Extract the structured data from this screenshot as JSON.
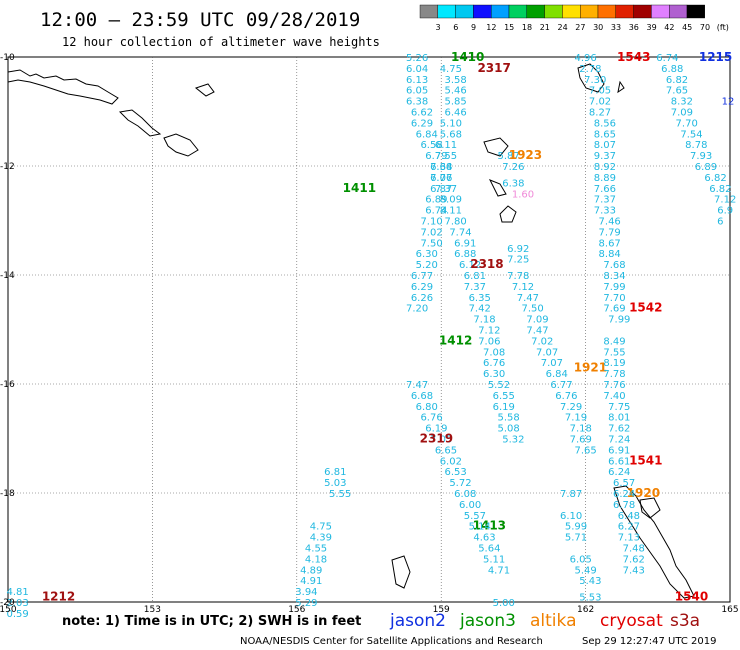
{
  "header": {
    "title": "12:00 — 23:59 UTC 09/28/2019",
    "subtitle": "12 hour collection of altimeter wave heights"
  },
  "scale": {
    "labels": [
      "3",
      "6",
      "9",
      "12",
      "15",
      "18",
      "21",
      "24",
      "27",
      "30",
      "33",
      "36",
      "39",
      "42",
      "45",
      "70",
      "(ft)"
    ],
    "colors": [
      "#888888",
      "#00e8ff",
      "#00c8f0",
      "#1010ff",
      "#00a0ff",
      "#00d060",
      "#00a000",
      "#80e000",
      "#ffe000",
      "#ffb000",
      "#ff7000",
      "#e02000",
      "#a00000",
      "#e080ff",
      "#b060d0",
      "#000000"
    ]
  },
  "footer": {
    "note": "note:  1) Time is in UTC;  2) SWH is in feet",
    "satellites": [
      {
        "name": "jason2",
        "color": "#1030e0"
      },
      {
        "name": "jason3",
        "color": "#009000"
      },
      {
        "name": "altika",
        "color": "#f08000"
      },
      {
        "name": "cryosat",
        "color": "#e00000"
      },
      {
        "name": "s3a",
        "color": "#a01010"
      }
    ],
    "credit": "NOAA/NESDIS Center for Satellite Applications and Research",
    "timestamp": "Sep 29 12:27:47 UTC 2019"
  },
  "colors": {
    "value_text": "#20b8e0",
    "grid": "#555555"
  },
  "chart_data": {
    "type": "scatter",
    "xlim": [
      150,
      165
    ],
    "ylim": [
      -10,
      -20
    ],
    "x_ticks": [
      150,
      153,
      156,
      159,
      162,
      165
    ],
    "y_ticks": [
      -10,
      -12,
      -14,
      -16,
      -18,
      -20
    ],
    "x_tick_labels": [
      "150",
      "153",
      "156",
      "159",
      "162",
      "165"
    ],
    "y_tick_labels": [
      "-10",
      "-12",
      "-14",
      "-16",
      "-18",
      "-20"
    ],
    "grid": true,
    "passes": [
      {
        "label": "1410",
        "color": "#009000",
        "lon": 159.55,
        "lat": -10.0,
        "x": [
          158.5,
          158.5,
          158.5,
          158.5,
          158.5,
          158.6,
          158.6,
          158.7,
          158.8,
          158.9,
          159.0,
          159.0,
          159.1,
          159.2,
          159.2,
          159.3,
          159.4,
          159.5,
          159.5,
          159.6,
          159.7,
          159.7,
          159.8,
          159.8,
          159.9,
          160.0,
          160.0,
          160.1,
          160.1,
          160.1,
          160.2,
          160.3,
          160.3,
          160.4,
          160.4,
          160.5
        ],
        "y": [
          -10.0,
          -10.2,
          -10.4,
          -10.6,
          -10.8,
          -11.0,
          -11.2,
          -11.4,
          -11.6,
          -11.8,
          -12.0,
          -12.2,
          -12.4,
          -12.6,
          -12.8,
          -13.0,
          -13.2,
          -13.4,
          -13.6,
          -13.8,
          -14.0,
          -14.2,
          -14.4,
          -14.6,
          -14.8,
          -15.0,
          -15.2,
          -15.4,
          -15.6,
          -15.8,
          -16.0,
          -16.2,
          -16.4,
          -16.6,
          -16.8,
          -17.0
        ],
        "values": [
          "5.26",
          "6.04",
          "6.13",
          "6.05",
          "6.38",
          "6.62",
          "6.29",
          "6.84",
          "6.58",
          "6.79",
          "7.68",
          "7.06",
          "7.37",
          "8.09",
          "8.11",
          "7.80",
          "7.74",
          "6.91",
          "6.88",
          "6.12",
          "6.81",
          "7.37",
          "6.35",
          "7.42",
          "7.18",
          "7.12",
          "7.06",
          "7.08",
          "6.76",
          "6.30",
          "5.52",
          "6.55",
          "6.19",
          "5.58",
          "5.08",
          "5.32"
        ]
      },
      {
        "label": "1411",
        "color": "#009000",
        "lon": 157.3,
        "lat": -12.4,
        "x": [],
        "y": [],
        "values": []
      },
      {
        "label": "1412",
        "color": "#009000",
        "lon": 159.3,
        "lat": -15.2,
        "x": [],
        "y": [],
        "values": []
      },
      {
        "label": "1413",
        "color": "#009000",
        "lon": 160.0,
        "lat": -18.6,
        "x": [],
        "y": [],
        "values": []
      },
      {
        "label": "2317",
        "color": "#a01010",
        "lon": 160.1,
        "lat": -10.2,
        "x": [
          159.2,
          159.3,
          159.3,
          159.3,
          159.3,
          159.2,
          159.2,
          159.1,
          159.1,
          159.0,
          159.0,
          159.0,
          158.9,
          158.9,
          158.8,
          158.8,
          158.8,
          158.7,
          158.7,
          158.6,
          158.6,
          158.6,
          158.5
        ],
        "y": [
          -10.2,
          -10.4,
          -10.6,
          -10.8,
          -11.0,
          -11.2,
          -11.4,
          -11.6,
          -11.8,
          -12.0,
          -12.2,
          -12.4,
          -12.6,
          -12.8,
          -13.0,
          -13.2,
          -13.4,
          -13.6,
          -13.8,
          -14.0,
          -14.2,
          -14.4,
          -14.6
        ],
        "values": [
          "4.75",
          "3.58",
          "5.46",
          "5.85",
          "6.46",
          "5.10",
          "5.68",
          "6.11",
          "7.55",
          "6.34",
          "6.77",
          "6.87",
          "6.89",
          "6.74",
          "7.10",
          "7.02",
          "7.50",
          "6.30",
          "5.20",
          "6.77",
          "6.29",
          "6.26",
          "7.20"
        ]
      },
      {
        "label": "2318",
        "color": "#a01010",
        "lon": 159.95,
        "lat": -13.8,
        "x": [],
        "y": [],
        "values": []
      },
      {
        "label": "2319",
        "color": "#a01010",
        "lon": 158.9,
        "lat": -17.0,
        "x": [
          158.5,
          158.6,
          158.7,
          158.8,
          158.9,
          159.0,
          159.1,
          159.2,
          159.3,
          159.4,
          159.5,
          159.6,
          159.7,
          159.8,
          159.9,
          160.0,
          160.1,
          160.2
        ],
        "y": [
          -16.0,
          -16.2,
          -16.4,
          -16.6,
          -16.8,
          -17.0,
          -17.2,
          -17.4,
          -17.6,
          -17.8,
          -18.0,
          -18.2,
          -18.4,
          -18.6,
          -18.8,
          -19.0,
          -19.2,
          -19.4
        ],
        "values": [
          "7.47",
          "6.68",
          "6.80",
          "6.76",
          "6.19",
          "7.05",
          "6.65",
          "6.02",
          "6.53",
          "5.72",
          "6.08",
          "6.00",
          "5.57",
          "5.14",
          "4.63",
          "5.64",
          "5.11",
          "4.71"
        ]
      },
      {
        "label": "1923",
        "color": "#f08000",
        "lon": 160.75,
        "lat": -11.8,
        "x": [
          160.4,
          160.5,
          160.5,
          160.6,
          160.6,
          160.6,
          160.7,
          160.8,
          160.9,
          161.0,
          161.0,
          161.1,
          161.2,
          161.3,
          161.4,
          161.5,
          161.6,
          161.7,
          161.8,
          161.9,
          161.9,
          162.0
        ],
        "y": [
          -11.8,
          -12.0,
          -12.3,
          -13.5,
          -13.7,
          -14.0,
          -14.2,
          -14.4,
          -14.6,
          -14.8,
          -15.0,
          -15.2,
          -15.4,
          -15.6,
          -15.8,
          -16.0,
          -16.2,
          -16.4,
          -16.6,
          -16.8,
          -17.0,
          -17.2
        ],
        "values": [
          "5.87",
          "7.26",
          "6.38",
          "6.92",
          "7.25",
          "7.78",
          "7.12",
          "7.47",
          "7.50",
          "7.09",
          "7.47",
          "7.02",
          "7.07",
          "7.07",
          "6.84",
          "6.77",
          "6.76",
          "7.29",
          "7.19",
          "7.18",
          "7.69",
          "7.65"
        ]
      },
      {
        "label": "1921",
        "color": "#f08000",
        "lon": 162.1,
        "lat": -15.7,
        "x": [],
        "y": [],
        "values": []
      },
      {
        "label": "1920",
        "color": "#f08000",
        "lon": 163.2,
        "lat": -18.0,
        "x": [],
        "y": [],
        "values": []
      },
      {
        "label": "1543",
        "color": "#e00000",
        "lon": 163.0,
        "lat": -10.0,
        "x": [
          162.0,
          162.1,
          162.2,
          162.3,
          162.3,
          162.3,
          162.4,
          162.4,
          162.4,
          162.4,
          162.4,
          162.4,
          162.4,
          162.4,
          162.4,
          162.5,
          162.5,
          162.5,
          162.5,
          162.6,
          162.6,
          162.6,
          162.6,
          162.6,
          162.7
        ],
        "y": [
          -10.0,
          -10.2,
          -10.4,
          -10.6,
          -10.8,
          -11.0,
          -11.2,
          -11.4,
          -11.6,
          -11.8,
          -12.0,
          -12.2,
          -12.4,
          -12.6,
          -12.8,
          -13.0,
          -13.2,
          -13.4,
          -13.6,
          -13.8,
          -14.0,
          -14.2,
          -14.4,
          -14.6,
          -14.8
        ],
        "values": [
          "4.96",
          "2.78",
          "7.30",
          "7.05",
          "7.02",
          "8.27",
          "8.56",
          "8.65",
          "8.07",
          "9.37",
          "8.92",
          "8.89",
          "7.66",
          "7.37",
          "7.33",
          "7.46",
          "7.79",
          "8.67",
          "8.84",
          "7.68",
          "8.34",
          "7.99",
          "7.70",
          "7.69",
          "7.99"
        ]
      },
      {
        "label": "1542",
        "color": "#e00000",
        "lon": 163.25,
        "lat": -14.6,
        "x": [],
        "y": [],
        "values": []
      },
      {
        "label": "1541",
        "color": "#e00000",
        "lon": 163.25,
        "lat": -17.4,
        "x": [
          162.6,
          162.6,
          162.6,
          162.6,
          162.6,
          162.6,
          162.7,
          162.7,
          162.7,
          162.7,
          162.7,
          162.7,
          162.7,
          162.8,
          162.8,
          162.8,
          162.9,
          162.9,
          162.9,
          163.0,
          163.0,
          163.0
        ],
        "y": [
          -15.2,
          -15.4,
          -15.6,
          -15.8,
          -16.0,
          -16.2,
          -16.4,
          -16.6,
          -16.8,
          -17.0,
          -17.2,
          -17.4,
          -17.6,
          -17.8,
          -18.0,
          -18.2,
          -18.4,
          -18.6,
          -18.8,
          -19.0,
          -19.2,
          -19.4
        ],
        "values": [
          "8.49",
          "7.55",
          "8.19",
          "7.78",
          "7.76",
          "7.40",
          "7.75",
          "8.01",
          "7.62",
          "7.24",
          "6.91",
          "6.61",
          "6.24",
          "6.57",
          "6.24",
          "6.78",
          "6.48",
          "6.27",
          "7.13",
          "7.48",
          "7.62",
          "7.43"
        ]
      },
      {
        "label": "1540",
        "color": "#e00000",
        "lon": 164.2,
        "lat": -19.9,
        "x": [],
        "y": [],
        "values": []
      },
      {
        "label": "1215",
        "color": "#1030e0",
        "lon": 164.7,
        "lat": -10.0,
        "x": [
          163.7,
          163.8,
          163.9,
          163.9,
          164.0,
          164.0,
          164.1,
          164.2,
          164.3,
          164.4,
          164.5,
          164.7,
          164.8,
          164.9,
          164.9
        ],
        "y": [
          -10.0,
          -10.2,
          -10.4,
          -10.6,
          -10.8,
          -11.0,
          -11.2,
          -11.4,
          -11.6,
          -11.8,
          -12.0,
          -12.2,
          -12.4,
          -12.6,
          -12.8
        ],
        "values": [
          "6.74",
          "6.88",
          "6.82",
          "7.65",
          "8.32",
          "7.09",
          "7.70",
          "7.54",
          "8.78",
          "7.93",
          "6.89",
          "6.82",
          "6.82",
          "7.12",
          "6.9"
        ]
      },
      {
        "label": "1212",
        "color": "#a01010",
        "lon": 151.05,
        "lat": -19.9,
        "x": [
          150.2,
          150.2,
          150.2
        ],
        "y": [
          -19.8,
          -20.0,
          -20.2
        ],
        "values": [
          "4.81",
          "2.03",
          "0.59"
        ]
      }
    ],
    "extra_points": [
      {
        "lon": 160.7,
        "lat": -12.5,
        "value": "1.60",
        "color": "#f08ad8"
      },
      {
        "lon": 156.5,
        "lat": -18.6,
        "value": "4.75",
        "color": "#20b8e0"
      },
      {
        "lon": 156.5,
        "lat": -18.8,
        "value": "4.39",
        "color": "#20b8e0"
      },
      {
        "lon": 156.4,
        "lat": -19.0,
        "value": "4.55",
        "color": "#20b8e0"
      },
      {
        "lon": 156.4,
        "lat": -19.2,
        "value": "4.18",
        "color": "#20b8e0"
      },
      {
        "lon": 156.3,
        "lat": -19.4,
        "value": "4.89",
        "color": "#20b8e0"
      },
      {
        "lon": 156.3,
        "lat": -19.6,
        "value": "4.91",
        "color": "#20b8e0"
      },
      {
        "lon": 156.2,
        "lat": -19.8,
        "value": "3.94",
        "color": "#20b8e0"
      },
      {
        "lon": 156.2,
        "lat": -20.0,
        "value": "5.29",
        "color": "#20b8e0"
      },
      {
        "lon": 156.8,
        "lat": -17.6,
        "value": "6.81",
        "color": "#20b8e0"
      },
      {
        "lon": 156.8,
        "lat": -17.8,
        "value": "5.03",
        "color": "#20b8e0"
      },
      {
        "lon": 156.9,
        "lat": -18.0,
        "value": "5.55",
        "color": "#20b8e0"
      },
      {
        "lon": 160.3,
        "lat": -20.0,
        "value": "5.00",
        "color": "#20b8e0"
      },
      {
        "lon": 161.7,
        "lat": -18.0,
        "value": "7.87",
        "color": "#20b8e0"
      },
      {
        "lon": 161.7,
        "lat": -18.4,
        "value": "6.10",
        "color": "#20b8e0"
      },
      {
        "lon": 161.8,
        "lat": -18.6,
        "value": "5.99",
        "color": "#20b8e0"
      },
      {
        "lon": 161.8,
        "lat": -18.8,
        "value": "5.71",
        "color": "#20b8e0"
      },
      {
        "lon": 161.9,
        "lat": -19.2,
        "value": "6.05",
        "color": "#20b8e0"
      },
      {
        "lon": 162.0,
        "lat": -19.4,
        "value": "5.49",
        "color": "#20b8e0"
      },
      {
        "lon": 162.1,
        "lat": -19.6,
        "value": "5.43",
        "color": "#20b8e0"
      },
      {
        "lon": 162.1,
        "lat": -19.9,
        "value": "5.53",
        "color": "#20b8e0"
      },
      {
        "lon": 164.8,
        "lat": -13.0,
        "value": "6",
        "color": "#20b8e0"
      },
      {
        "lon": 165.0,
        "lat": -10.8,
        "value": "12",
        "color": "#1030e0"
      }
    ]
  }
}
